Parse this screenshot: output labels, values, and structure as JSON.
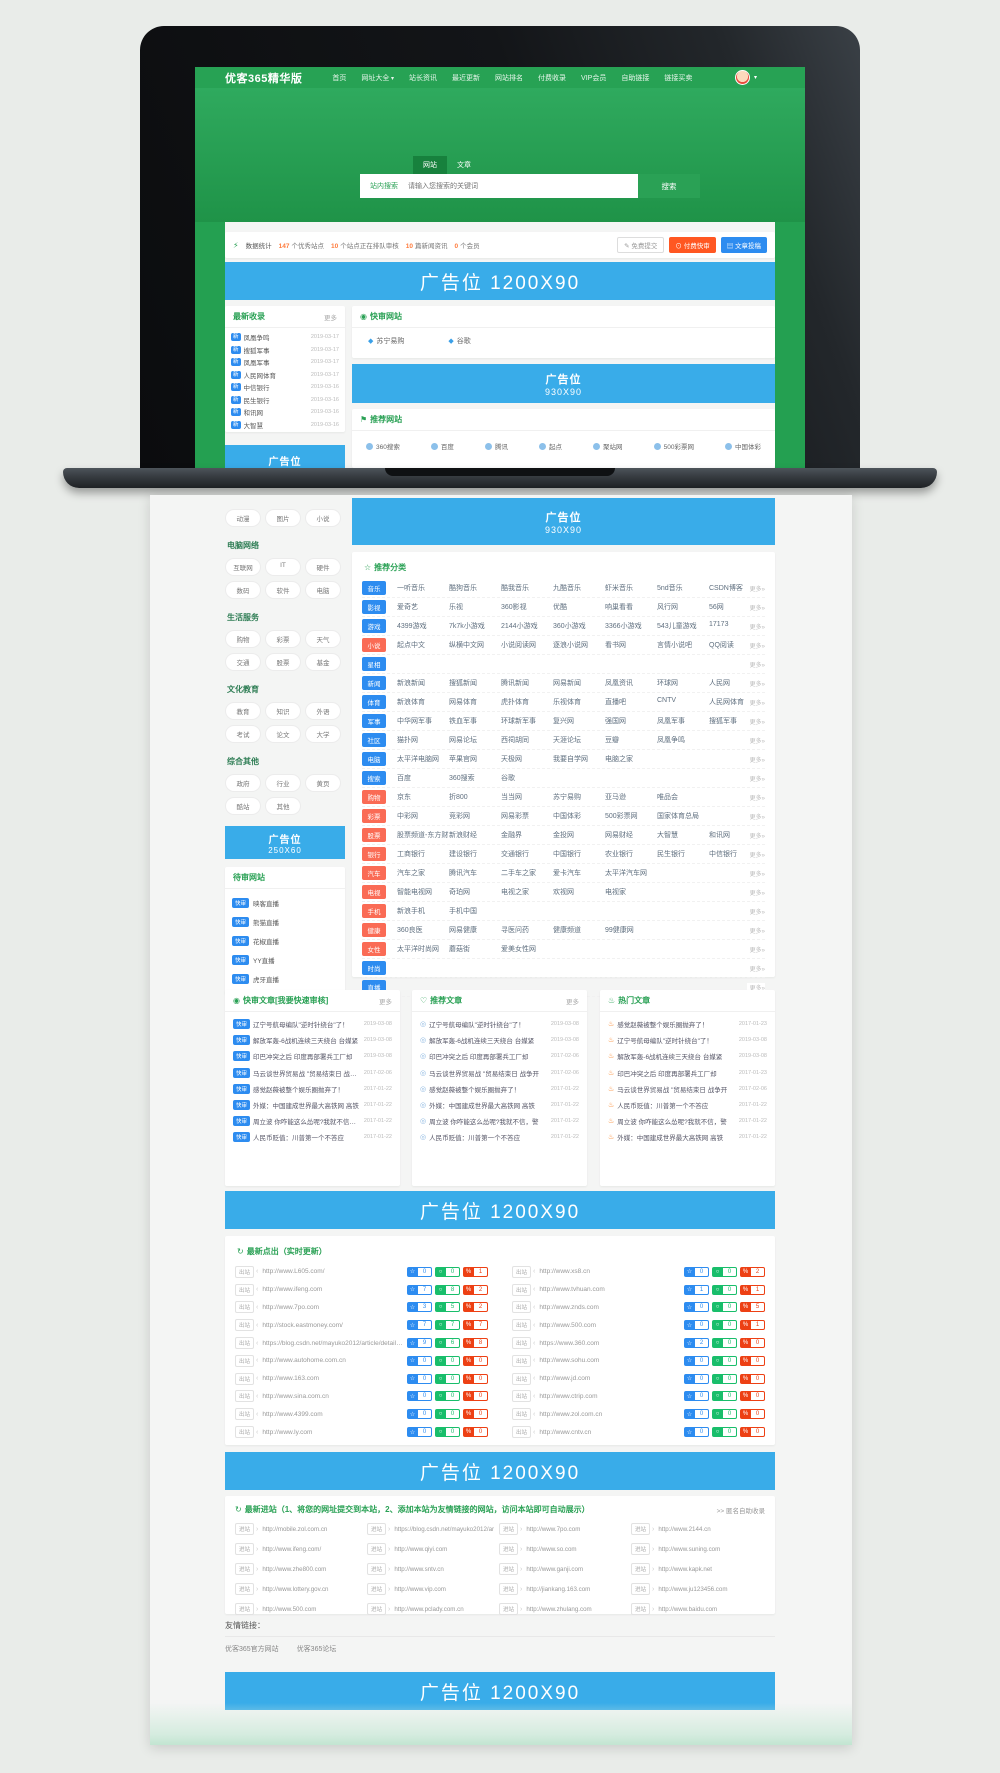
{
  "navbar": {
    "logo": "优客365精华版",
    "items": [
      {
        "label": "首页"
      },
      {
        "label": "网址大全",
        "dropdown": true
      },
      {
        "label": "站长资讯"
      },
      {
        "label": "最近更新"
      },
      {
        "label": "网站排名"
      },
      {
        "label": "付费收录"
      },
      {
        "label": "VIP会员"
      },
      {
        "label": "自助链接"
      },
      {
        "label": "链接买卖"
      }
    ]
  },
  "search": {
    "tabs": [
      "网站",
      "文章"
    ],
    "active_tab": "网站",
    "label": "站内搜索",
    "placeholder": "请输入您搜索的关键词",
    "button": "搜索"
  },
  "stats": {
    "title": "数据统计",
    "items": [
      {
        "num": "147",
        "label": "个优秀站点"
      },
      {
        "num": "10",
        "label": "个站点正在排队审核"
      },
      {
        "num": "10",
        "label": "篇新闻资讯"
      },
      {
        "num": "0",
        "label": "个会员"
      }
    ],
    "buttons": {
      "free": "免费提交",
      "paid": "付费快审",
      "post": "文章投稿"
    }
  },
  "ads": {
    "banner1200": "广告位  1200X90",
    "banner930": [
      "广告位",
      "930X90"
    ],
    "banner250": [
      "广告位",
      "250X60"
    ]
  },
  "latest_sites": {
    "title": "最新收录",
    "more": "更多",
    "badge": "新",
    "items": [
      {
        "name": "凤凰争鸣",
        "date": "2019-03-17"
      },
      {
        "name": "搜狐军事",
        "date": "2019-03-17"
      },
      {
        "name": "凤凰军事",
        "date": "2019-03-17"
      },
      {
        "name": "人民网体育",
        "date": "2019-03-17"
      },
      {
        "name": "中信银行",
        "date": "2019-03-16"
      },
      {
        "name": "民生银行",
        "date": "2019-03-16"
      },
      {
        "name": "和讯网",
        "date": "2019-03-16"
      },
      {
        "name": "大智慧",
        "date": "2019-03-16"
      }
    ]
  },
  "quick_audit": {
    "title": "快审网站",
    "items": [
      "苏宁易购",
      "谷歌"
    ]
  },
  "recommend_sites": {
    "title": "推荐网站",
    "items": [
      "360搜索",
      "百度",
      "腾讯",
      "起点",
      "聚站网",
      "500彩票网",
      "中国体彩"
    ]
  },
  "sidebar": {
    "orphan_pills": [
      "动漫",
      "图片",
      "小说"
    ],
    "groups": [
      {
        "title": "电脑网络",
        "pills": [
          "互联网",
          "IT",
          "硬件",
          "数码",
          "软件",
          "电脑"
        ]
      },
      {
        "title": "生活服务",
        "pills": [
          "购物",
          "彩票",
          "天气",
          "交通",
          "股票",
          "基金"
        ]
      },
      {
        "title": "文化教育",
        "pills": [
          "教育",
          "知识",
          "外语",
          "考试",
          "论文",
          "大学"
        ]
      },
      {
        "title": "综合其他",
        "pills": [
          "政府",
          "行业",
          "黄页",
          "酷站",
          "其他"
        ]
      }
    ],
    "pending": {
      "title": "待审网站",
      "badge": "快审",
      "items": [
        "映客直播",
        "熊猫直播",
        "花椒直播",
        "YY直播",
        "虎牙直播"
      ]
    }
  },
  "categories": {
    "title": "推荐分类",
    "more": "更多»",
    "rows": [
      {
        "b": "音乐",
        "c": "b",
        "s": [
          "一听音乐",
          "酷狗音乐",
          "酷我音乐",
          "九酷音乐",
          "虾米音乐",
          "5nd音乐",
          "CSDN博客"
        ]
      },
      {
        "b": "影视",
        "c": "b",
        "s": [
          "爱奇艺",
          "乐视",
          "360影视",
          "优酷",
          "响巢看看",
          "风行网",
          "56网"
        ]
      },
      {
        "b": "游戏",
        "c": "b",
        "s": [
          "4399游戏",
          "7k7k小游戏",
          "2144小游戏",
          "360小游戏",
          "3366小游戏",
          "543儿童游戏",
          "17173"
        ]
      },
      {
        "b": "小说",
        "c": "o",
        "s": [
          "起点中文",
          "纵横中文网",
          "小说阅读网",
          "逐浪小说网",
          "看书网",
          "言情小说吧",
          "QQ阅读"
        ]
      },
      {
        "b": "星相",
        "c": "b",
        "s": []
      },
      {
        "b": "新闻",
        "c": "b",
        "s": [
          "新浪新闻",
          "搜狐新闻",
          "腾讯新闻",
          "网易新闻",
          "凤凰资讯",
          "环球网",
          "人民网"
        ]
      },
      {
        "b": "体育",
        "c": "b",
        "s": [
          "新浪体育",
          "网易体育",
          "虎扑体育",
          "乐视体育",
          "直播吧",
          "CNTV",
          "人民网体育"
        ]
      },
      {
        "b": "军事",
        "c": "b",
        "s": [
          "中华网军事",
          "铁血军事",
          "环球新军事",
          "复兴网",
          "强国网",
          "凤凰军事",
          "搜狐军事"
        ]
      },
      {
        "b": "社区",
        "c": "b",
        "s": [
          "猫扑网",
          "网易论坛",
          "西祠胡同",
          "天涯论坛",
          "豆瓣",
          "凤凰争鸣"
        ]
      },
      {
        "b": "电脑",
        "c": "b",
        "s": [
          "太平洋电脑网",
          "苹果官网",
          "天极网",
          "我要自学网",
          "电脑之家"
        ]
      },
      {
        "b": "搜索",
        "c": "b",
        "s": [
          "百度",
          "360搜索",
          "谷歌"
        ]
      },
      {
        "b": "购物",
        "c": "o",
        "s": [
          "京东",
          "折800",
          "当当网",
          "苏宁易购",
          "亚马逊",
          "唯品会"
        ]
      },
      {
        "b": "彩票",
        "c": "o",
        "s": [
          "中彩网",
          "竞彩网",
          "网易彩票",
          "中国体彩",
          "500彩票网",
          "国家体育总局"
        ]
      },
      {
        "b": "股票",
        "c": "o",
        "s": [
          "股票频道-东方财富",
          "新浪财经",
          "金融界",
          "金投网",
          "网易财经",
          "大智慧",
          "和讯网"
        ]
      },
      {
        "b": "银行",
        "c": "o",
        "s": [
          "工商银行",
          "建设银行",
          "交通银行",
          "中国银行",
          "农业银行",
          "民生银行",
          "中信银行"
        ]
      },
      {
        "b": "汽车",
        "c": "o",
        "s": [
          "汽车之家",
          "腾讯汽车",
          "二手车之家",
          "爱卡汽车",
          "太平洋汽车网"
        ]
      },
      {
        "b": "电视",
        "c": "o",
        "s": [
          "智能电视网",
          "奇珀网",
          "电视之家",
          "欢视网",
          "电视家"
        ]
      },
      {
        "b": "手机",
        "c": "o",
        "s": [
          "新浪手机",
          "手机中国"
        ]
      },
      {
        "b": "健康",
        "c": "o",
        "s": [
          "360良医",
          "网易健康",
          "寻医问药",
          "健康频道",
          "99健康网"
        ]
      },
      {
        "b": "女性",
        "c": "o",
        "s": [
          "太平洋时尚网",
          "蘑菇街",
          "爱美女性网"
        ]
      },
      {
        "b": "时尚",
        "c": "b",
        "s": []
      },
      {
        "b": "直播",
        "c": "b",
        "s": []
      }
    ]
  },
  "articles": {
    "cards": [
      {
        "icon": "◉",
        "title": "快审文章[我要快速审核]",
        "more": "更多",
        "type": "badge",
        "badge": "快审",
        "items": [
          {
            "t": "辽宁号航母编队\"逆时针绕台\"了！",
            "d": "2019-03-08"
          },
          {
            "t": "解放军轰-6战机连续三天绕台 台媒紧",
            "d": "2019-03-08"
          },
          {
            "t": "印巴冲突之后 印度再部署兵工厂却",
            "d": "2019-03-08"
          },
          {
            "t": "马云谈世界贸易战 \"贸易结束日 战争开",
            "d": "2017-02-06"
          },
          {
            "t": "感觉赵薇被整个娱乐圈抛弃了！",
            "d": "2017-01-22"
          },
          {
            "t": "外媒：中国建成世界最大高铁网 高铁",
            "d": "2017-01-22"
          },
          {
            "t": "周立波 你咋能这么怂呢?我就不信，警",
            "d": "2017-01-22"
          },
          {
            "t": "人民币贬值：川普第一个不答应",
            "d": "2017-01-22"
          }
        ]
      },
      {
        "icon": "♡",
        "title": "推荐文章",
        "more": "更多",
        "type": "dot",
        "items": [
          {
            "t": "辽宁号航母编队\"逆时针绕台\"了！",
            "d": "2019-03-08"
          },
          {
            "t": "解放军轰-6战机连续三天绕台 台媒紧",
            "d": "2019-03-08"
          },
          {
            "t": "印巴冲突之后 印度再部署兵工厂却",
            "d": "2017-02-06"
          },
          {
            "t": "马云谈世界贸易战 \"贸易结束日 战争开",
            "d": "2017-02-06"
          },
          {
            "t": "感觉赵薇被整个娱乐圈抛弃了！",
            "d": "2017-01-22"
          },
          {
            "t": "外媒：中国建成世界最大高铁网 高铁",
            "d": "2017-01-22"
          },
          {
            "t": "周立波 你咋能这么怂呢?我就不信，警",
            "d": "2017-01-22"
          },
          {
            "t": "人民币贬值：川普第一个不答应",
            "d": "2017-01-22"
          }
        ]
      },
      {
        "icon": "♨",
        "title": "热门文章",
        "more": "",
        "type": "fire",
        "items": [
          {
            "t": "感觉赵薇被整个娱乐圈抛弃了！",
            "d": "2017-01-23"
          },
          {
            "t": "辽宁号航母编队\"逆时针绕台\"了！",
            "d": "2019-03-08"
          },
          {
            "t": "解放军轰-6战机连续三天绕台 台媒紧",
            "d": "2019-03-08"
          },
          {
            "t": "印巴冲突之后 印度再部署兵工厂却",
            "d": "2017-01-23"
          },
          {
            "t": "马云谈世界贸易战 \"贸易结束日 战争开",
            "d": "2017-02-06"
          },
          {
            "t": "人民币贬值：川普第一个不答应",
            "d": "2017-01-22"
          },
          {
            "t": "周立波 你咋能这么怂呢?我就不信，警",
            "d": "2017-01-22"
          },
          {
            "t": "外媒：中国建成世界最大高铁网 高铁",
            "d": "2017-01-22"
          }
        ]
      }
    ]
  },
  "latest_out": {
    "title": "最新点出（实时更新）",
    "chip": "出站",
    "left": [
      {
        "u": "http://www.L605.com/",
        "n": [
          0,
          0,
          1
        ]
      },
      {
        "u": "http://www.ifeng.com",
        "n": [
          7,
          8,
          2
        ]
      },
      {
        "u": "http://www.7po.com",
        "n": [
          3,
          5,
          2
        ]
      },
      {
        "u": "http://stock.eastmoney.com/",
        "n": [
          7,
          7,
          7
        ]
      },
      {
        "u": "https://blog.csdn.net/mayuko2012/article/details/54744066",
        "n": [
          9,
          6,
          8
        ]
      },
      {
        "u": "http://www.autohome.com.cn",
        "n": [
          0,
          0,
          0
        ]
      },
      {
        "u": "http://www.163.com",
        "n": [
          0,
          0,
          0
        ]
      },
      {
        "u": "http://www.sina.com.cn",
        "n": [
          0,
          0,
          0
        ]
      },
      {
        "u": "http://www.4399.com",
        "n": [
          0,
          0,
          0
        ]
      },
      {
        "u": "http://www.ly.com",
        "n": [
          0,
          0,
          0
        ]
      }
    ],
    "right": [
      {
        "u": "http://www.xs8.cn",
        "n": [
          0,
          0,
          2
        ]
      },
      {
        "u": "http://www.tvhuan.com",
        "n": [
          1,
          0,
          1
        ]
      },
      {
        "u": "http://www.znds.com",
        "n": [
          0,
          0,
          5
        ]
      },
      {
        "u": "http://www.500.com",
        "n": [
          0,
          0,
          1
        ]
      },
      {
        "u": "https://www.360.com",
        "n": [
          2,
          0,
          0
        ]
      },
      {
        "u": "http://www.sohu.com",
        "n": [
          0,
          0,
          0
        ]
      },
      {
        "u": "http://www.jd.com",
        "n": [
          0,
          0,
          0
        ]
      },
      {
        "u": "http://www.ctrip.com",
        "n": [
          0,
          0,
          0
        ]
      },
      {
        "u": "http://www.zol.com.cn",
        "n": [
          0,
          0,
          0
        ]
      },
      {
        "u": "http://www.cntv.cn",
        "n": [
          0,
          0,
          0
        ]
      }
    ]
  },
  "latest_in": {
    "title": "最新进站（1、将您的网址提交到本站，2、添加本站为友情链接的网站，访问本站即可自动展示）",
    "more": ">> 匿名自助收录",
    "chip": "进站",
    "urls": [
      "http://mobile.zol.com.cn",
      "https://blog.csdn.net/mayuko2012/ar",
      "http://www.7po.com",
      "http://www.2144.cn",
      "http://www.ifeng.com/",
      "http://www.qiyi.com",
      "http://www.so.com",
      "http://www.suning.com",
      "http://www.zhe800.com",
      "http://www.sntv.cn",
      "http://www.ganji.com",
      "http://www.kapk.net",
      "http://www.lottery.gov.cn",
      "http://www.vip.com",
      "http://jiankang.163.com",
      "http://www.ju123456.com",
      "http://www.500.com",
      "http://www.pclady.com.cn",
      "http://www.zhulang.com",
      "http://www.baidu.com"
    ]
  },
  "friend_links": {
    "title": "友情链接：",
    "links": [
      "优客365官方网站",
      "优客365论坛"
    ]
  },
  "colors": {
    "accent_green": "#27a254",
    "banner_blue": "#39ace9",
    "badge_blue": "#2d8cf0",
    "badge_orange": "#fa6b55",
    "btn_orange": "#ff5722"
  }
}
